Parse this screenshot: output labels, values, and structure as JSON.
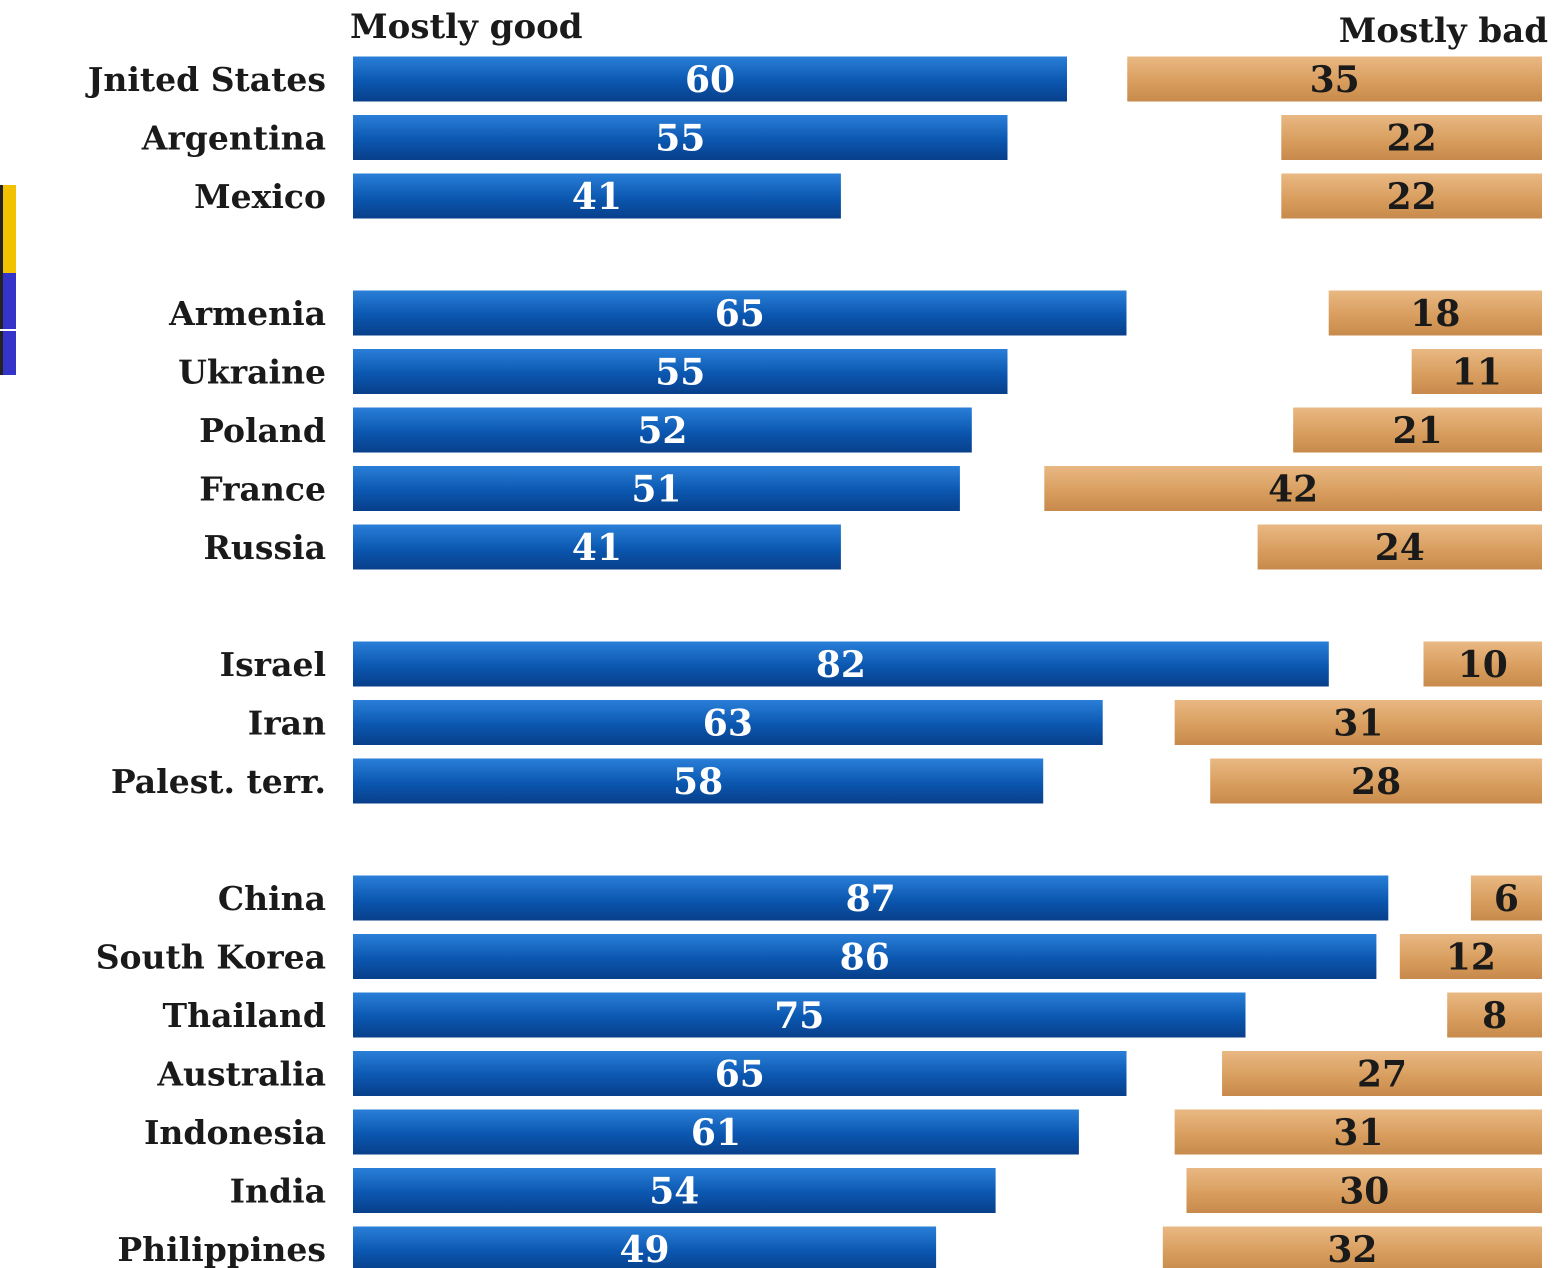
{
  "chart_data": {
    "type": "bar",
    "orientation": "horizontal",
    "series_labels": {
      "good": "Mostly good",
      "bad": "Mostly bad"
    },
    "colors": {
      "good": "#0e5bb5",
      "bad": "#d9a062"
    },
    "groups": [
      {
        "categories": [
          "Jnited States",
          "Argentina",
          "Mexico"
        ],
        "good": [
          60,
          55,
          41
        ],
        "bad": [
          35,
          22,
          22
        ]
      },
      {
        "categories": [
          "Armenia",
          "Ukraine",
          "Poland",
          "France",
          "Russia"
        ],
        "good": [
          65,
          55,
          52,
          51,
          41
        ],
        "bad": [
          18,
          11,
          21,
          42,
          24
        ]
      },
      {
        "categories": [
          "Israel",
          "Iran",
          "Palest. terr."
        ],
        "good": [
          82,
          63,
          58
        ],
        "bad": [
          10,
          31,
          28
        ]
      },
      {
        "categories": [
          "China",
          "South Korea",
          "Thailand",
          "Australia",
          "Indonesia",
          "India",
          "Philippines"
        ],
        "good": [
          87,
          86,
          75,
          65,
          61,
          54,
          49
        ],
        "bad": [
          6,
          12,
          8,
          27,
          31,
          30,
          32
        ]
      }
    ]
  }
}
